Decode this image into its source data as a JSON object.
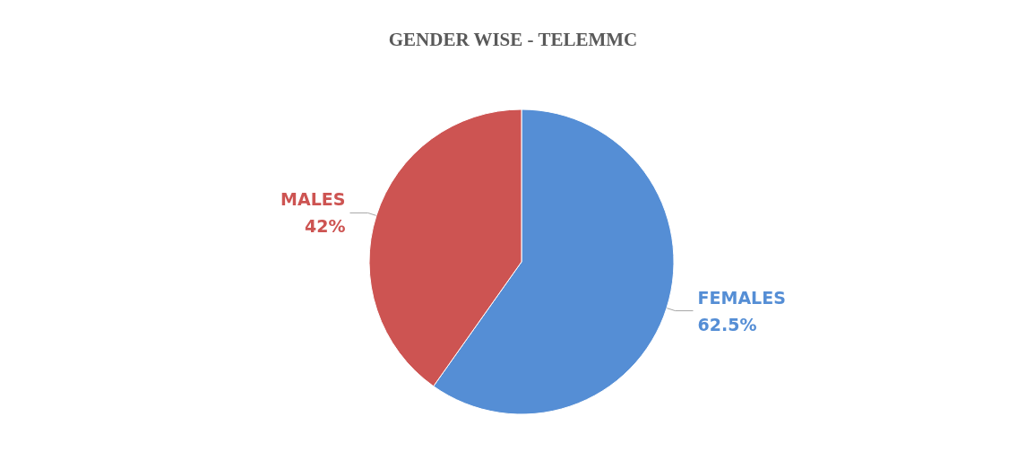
{
  "chart_data": {
    "type": "pie",
    "title": "GENDER WISE - TELEMMC",
    "categories": [
      "FEMALES",
      "MALES"
    ],
    "values": [
      62.5,
      42
    ],
    "colors": [
      "#558ed5",
      "#cd5452"
    ],
    "value_labels": [
      "62.5%",
      "42%"
    ],
    "legend": false
  }
}
